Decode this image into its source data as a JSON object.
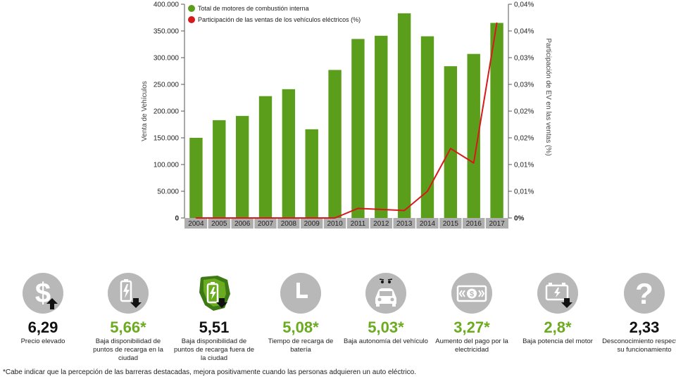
{
  "chart_data": {
    "type": "bar",
    "categories": [
      "2004",
      "2005",
      "2006",
      "2007",
      "2008",
      "2009",
      "2010",
      "2011",
      "2012",
      "2013",
      "2014",
      "2015",
      "2016",
      "2017"
    ],
    "series": [
      {
        "name": "Total de motores de combustión interna",
        "type": "bar",
        "axis": "left",
        "color": "#5a9e1c",
        "values": [
          150000,
          183000,
          191000,
          228000,
          241000,
          166000,
          277000,
          335000,
          341000,
          383000,
          340000,
          284000,
          307000,
          365000
        ]
      },
      {
        "name": "Participación de las ventas de los vehículos eléctricos (%)",
        "type": "line",
        "axis": "right",
        "color": "#d7191c",
        "values": [
          0,
          0,
          0,
          0,
          0,
          0,
          0,
          0.0018,
          0.0016,
          0.0014,
          0.005,
          0.013,
          0.0103,
          0.0365
        ]
      }
    ],
    "ylabel": "Venta de Vehículos",
    "y2label": "Participación de EV en las ventas (%)",
    "ylim": [
      0,
      400000
    ],
    "y2lim": [
      0,
      0.04
    ],
    "yticks": [
      "0",
      "50.000",
      "100.000",
      "150.000",
      "200.000",
      "250.000",
      "300.000",
      "350.000",
      "400.000"
    ],
    "y2ticks": [
      "0%",
      "0,01%",
      "0,01%",
      "0,02%",
      "0,02%",
      "0,03%",
      "0,03%",
      "0,04%",
      "0,04%"
    ],
    "legend_position": "top-left",
    "grid": false
  },
  "barriers": [
    {
      "score": "6,29",
      "color": "black",
      "icon": "dollar-up-icon",
      "label": "Precio elevado"
    },
    {
      "score": "5,66*",
      "color": "green",
      "icon": "battery-charge-down-icon",
      "label": "Baja disponibilidad de puntos de recarga en la ciudad"
    },
    {
      "score": "5,51",
      "color": "black",
      "icon": "map-battery-down-icon",
      "label": "Baja disponibilidad de puntos de recarga fuera de la ciudad"
    },
    {
      "score": "5,08*",
      "color": "green",
      "icon": "clock-icon",
      "label": "Tiempo de recarga de batería"
    },
    {
      "score": "5,03*",
      "color": "green",
      "icon": "car-worried-icon",
      "label": "Baja autonomía del vehículo"
    },
    {
      "score": "3,27*",
      "color": "green",
      "icon": "banknote-icon",
      "label": "Aumento del pago por la electricidad"
    },
    {
      "score": "2,8*",
      "color": "green",
      "icon": "car-battery-down-icon",
      "label": "Baja potencia del motor"
    },
    {
      "score": "2,33",
      "color": "black",
      "icon": "question-icon",
      "label": "Desconocimiento respecto a su funcionamiento"
    }
  ],
  "colors": {
    "green_score": "#6aab1f",
    "bar": "#5a9e1c",
    "line": "#d7191c",
    "icon_bg": "#b8b8b8"
  },
  "footnote": "*Cabe indicar que la percepción de las barreras destacadas, mejora positivamente cuando las personas adquieren un auto eléctrico."
}
